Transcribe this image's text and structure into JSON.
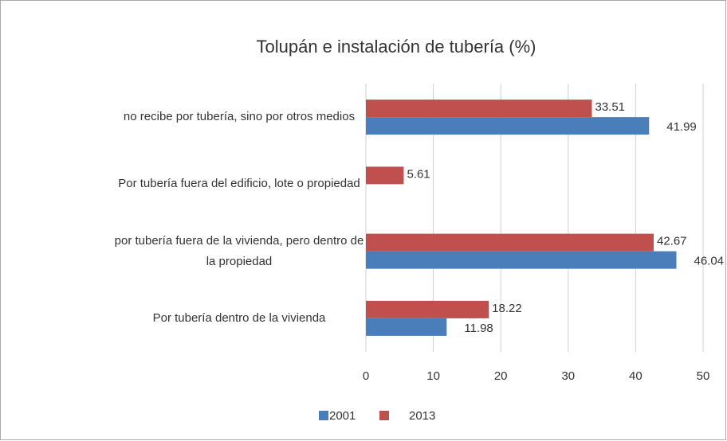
{
  "chart_data": {
    "type": "hbar",
    "title": "Tolupán e instalación de tubería (%)",
    "categories": [
      "no recibe por tubería, sino por otros medios",
      "Por tubería fuera del edificio, lote o propiedad",
      "por tubería fuera de la vivienda, pero dentro de la propiedad",
      "Por tubería dentro de la vivienda"
    ],
    "series": [
      {
        "name": "2001",
        "color": "#4a7ebb",
        "values": [
          41.99,
          null,
          46.04,
          11.98
        ]
      },
      {
        "name": "2013",
        "color": "#c0504d",
        "values": [
          33.51,
          5.61,
          42.67,
          18.22
        ]
      }
    ],
    "xlim": [
      0,
      50
    ],
    "xticks": [
      0,
      10,
      20,
      30,
      40,
      50
    ],
    "grid": true,
    "legend": "bottom"
  }
}
